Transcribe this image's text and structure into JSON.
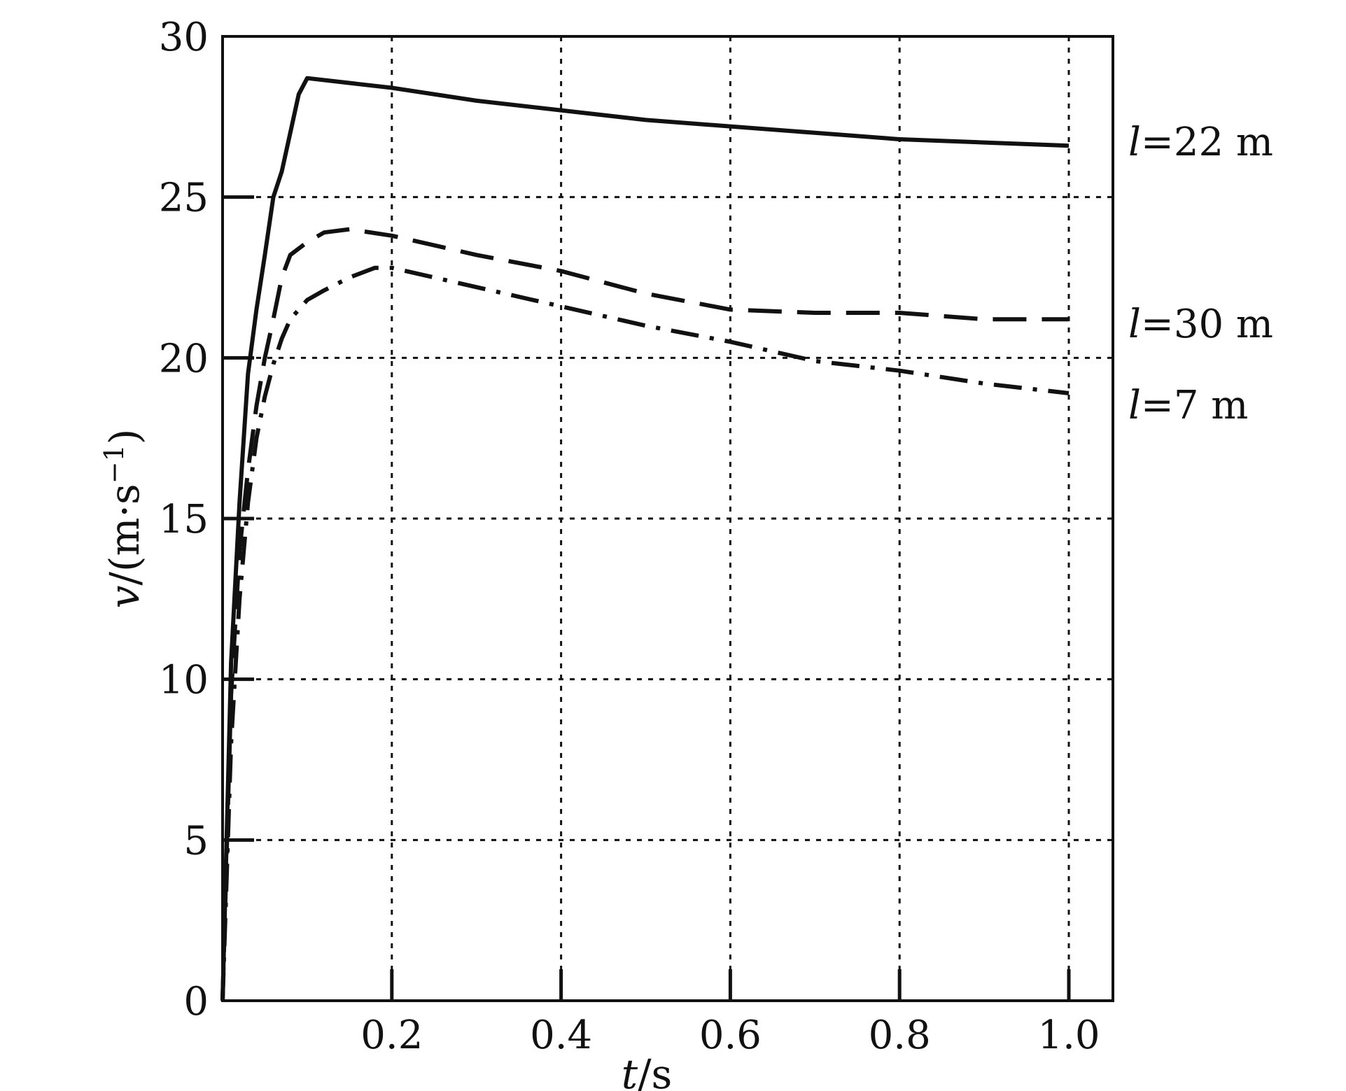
{
  "chart_data": {
    "type": "line",
    "title": "",
    "xlabel": {
      "italic": "t",
      "rest": "/s"
    },
    "ylabel": {
      "italic": "v",
      "rest": "/(m·s",
      "sup": "−1",
      "close": ")"
    },
    "xlim": [
      0,
      1.05
    ],
    "ylim": [
      0,
      30
    ],
    "x_ticks": [
      0.2,
      0.4,
      0.6,
      0.8,
      1.0
    ],
    "x_tick_labels": [
      "0.2",
      "0.4",
      "0.6",
      "0.8",
      "1.0"
    ],
    "y_ticks": [
      0,
      5,
      10,
      15,
      20,
      25,
      30
    ],
    "y_tick_labels": [
      "0",
      "5",
      "10",
      "15",
      "20",
      "25",
      "30"
    ],
    "grid": true,
    "legend": "labels at right end of lines",
    "series": [
      {
        "name": "l=22 m",
        "label_italic": "l",
        "label_rest": "=22 m",
        "style": "solid",
        "x": [
          0,
          0.01,
          0.02,
          0.03,
          0.04,
          0.05,
          0.06,
          0.07,
          0.08,
          0.09,
          0.1,
          0.2,
          0.3,
          0.4,
          0.5,
          0.6,
          0.7,
          0.8,
          0.9,
          1.0
        ],
        "y": [
          0,
          10.5,
          15.5,
          19.5,
          21.5,
          23.2,
          25,
          25.8,
          27,
          28.2,
          28.7,
          28.4,
          28.0,
          27.7,
          27.4,
          27.2,
          27.0,
          26.8,
          26.7,
          26.6
        ]
      },
      {
        "name": "l=30 m",
        "label_italic": "l",
        "label_rest": "=30 m",
        "style": "dashed",
        "x": [
          0,
          0.01,
          0.02,
          0.03,
          0.04,
          0.05,
          0.06,
          0.07,
          0.08,
          0.1,
          0.12,
          0.15,
          0.2,
          0.3,
          0.4,
          0.5,
          0.6,
          0.7,
          0.8,
          0.9,
          1.0
        ],
        "y": [
          0,
          9.5,
          14,
          16.5,
          18.5,
          20,
          21.2,
          22.5,
          23.2,
          23.6,
          23.9,
          24.0,
          23.8,
          23.2,
          22.7,
          22.0,
          21.5,
          21.4,
          21.4,
          21.2,
          21.2
        ]
      },
      {
        "name": "l=7 m",
        "label_italic": "l",
        "label_rest": "=7 m",
        "style": "dashdot",
        "x": [
          0,
          0.01,
          0.02,
          0.03,
          0.04,
          0.05,
          0.06,
          0.07,
          0.08,
          0.1,
          0.12,
          0.15,
          0.18,
          0.2,
          0.3,
          0.4,
          0.5,
          0.6,
          0.7,
          0.8,
          0.9,
          1.0
        ],
        "y": [
          0,
          8,
          12.5,
          15.5,
          17.5,
          18.8,
          19.8,
          20.6,
          21.2,
          21.8,
          22.1,
          22.5,
          22.8,
          22.8,
          22.2,
          21.6,
          21.0,
          20.5,
          19.9,
          19.6,
          19.2,
          18.9
        ]
      }
    ]
  }
}
